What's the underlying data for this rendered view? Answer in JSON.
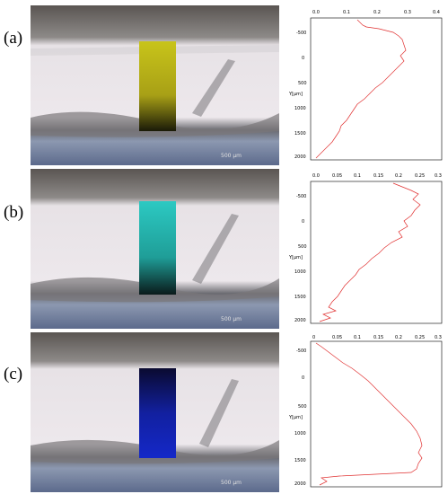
{
  "panels": [
    {
      "label": "(a)",
      "scale_bar": "500 µm",
      "strip_color": "#c8c41a",
      "y_ticks": [
        "-500",
        "0",
        "500",
        "1000",
        "1500",
        "2000"
      ],
      "x_ticks": [
        "0.0",
        "0.1",
        "0.2",
        "0.3",
        "0.4"
      ],
      "y_axis_label": "Y[µm]"
    },
    {
      "label": "(b)",
      "scale_bar": "500 µm",
      "strip_color": "#2cc9c2",
      "y_ticks": [
        "-500",
        "0",
        "500",
        "1000",
        "1500",
        "2000"
      ],
      "x_ticks": [
        "0.0",
        "0.05",
        "0.1",
        "0.15",
        "0.2",
        "0.25",
        "0.3"
      ],
      "y_axis_label": "Y[µm]"
    },
    {
      "label": "(c)",
      "scale_bar": "500 µm",
      "strip_color": "#1428c8",
      "y_ticks": [
        "-500",
        "0",
        "500",
        "1000",
        "1500",
        "2000"
      ],
      "x_ticks": [
        "0",
        "0.05",
        "0.1",
        "0.15",
        "0.2",
        "0.25",
        "0.3"
      ],
      "y_axis_label": "Y[µm]"
    }
  ]
}
